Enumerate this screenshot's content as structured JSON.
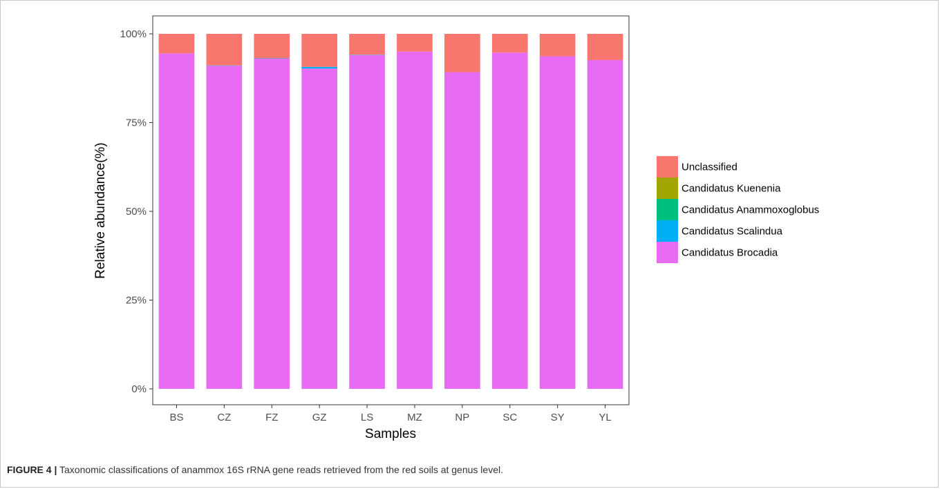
{
  "figure": {
    "label": "FIGURE 4 |",
    "caption": "Taxonomic classifications of anammox 16S rRNA gene reads retrieved from the red soils at genus level."
  },
  "chart_data": {
    "type": "bar",
    "stacked": true,
    "xlabel": "Samples",
    "ylabel": "Relative abundance(%)",
    "ylim": [
      0,
      100
    ],
    "yticks": [
      "0%",
      "25%",
      "50%",
      "75%",
      "100%"
    ],
    "grid": false,
    "legend_position": "right",
    "categories": [
      "BS",
      "CZ",
      "FZ",
      "GZ",
      "LS",
      "MZ",
      "NP",
      "SC",
      "SY",
      "YL"
    ],
    "series": [
      {
        "name": "Candidatus Brocadia",
        "color": "#E76BF3",
        "values": [
          94.5,
          91.0,
          93.0,
          90.2,
          94.0,
          95.0,
          89.2,
          94.7,
          93.7,
          92.6
        ]
      },
      {
        "name": "Candidatus Scalindua",
        "color": "#00B0F6",
        "values": [
          0.0,
          0.1,
          0.1,
          0.5,
          0.1,
          0.0,
          0.0,
          0.0,
          0.0,
          0.0
        ]
      },
      {
        "name": "Candidatus Anammoxoglobus",
        "color": "#00BF7D",
        "values": [
          0,
          0,
          0,
          0,
          0,
          0,
          0,
          0,
          0,
          0
        ]
      },
      {
        "name": "Candidatus Kuenenia",
        "color": "#A3A500",
        "values": [
          0,
          0,
          0,
          0,
          0,
          0,
          0,
          0,
          0,
          0
        ]
      },
      {
        "name": "Unclassified",
        "color": "#F8766D",
        "values": [
          5.5,
          8.9,
          6.9,
          9.3,
          5.9,
          5.0,
          10.8,
          5.3,
          6.3,
          7.4
        ]
      }
    ],
    "legend_order": [
      "Unclassified",
      "Candidatus Kuenenia",
      "Candidatus Anammoxoglobus",
      "Candidatus Scalindua",
      "Candidatus Brocadia"
    ]
  }
}
